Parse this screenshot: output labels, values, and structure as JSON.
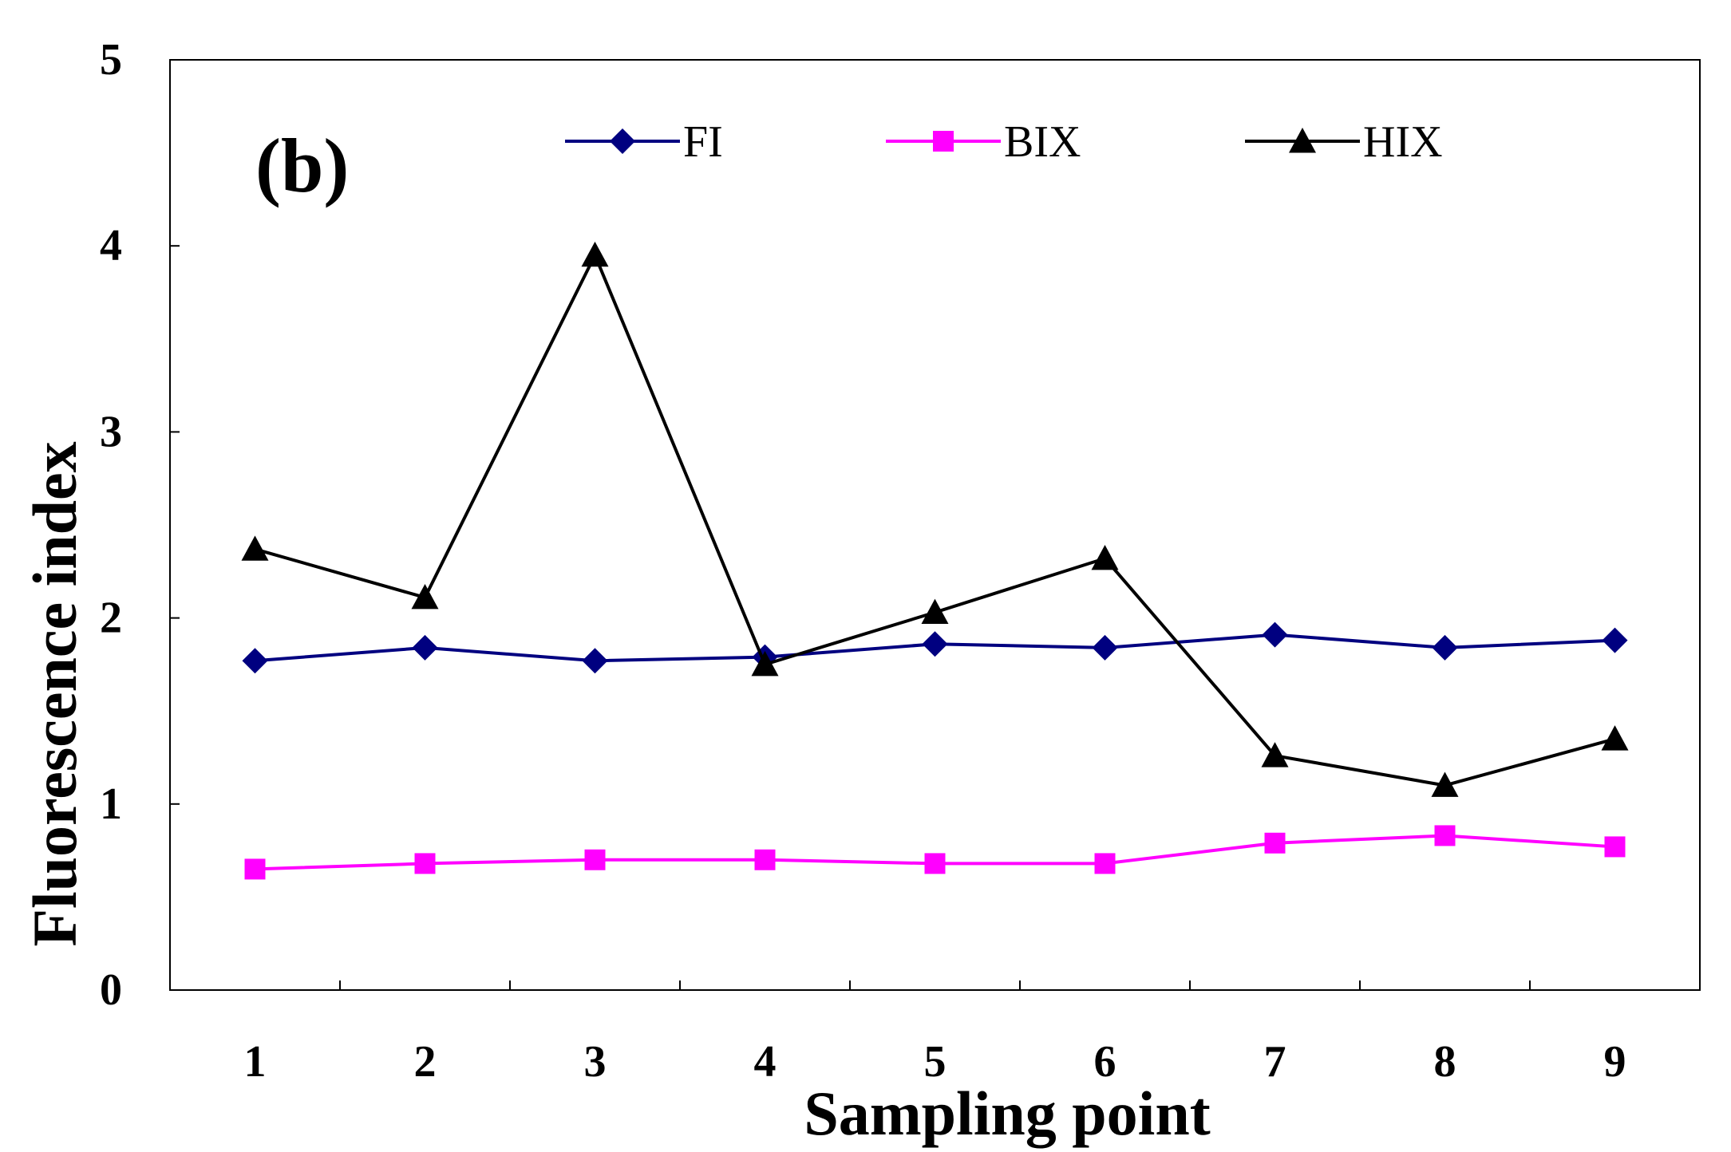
{
  "chart_data": {
    "type": "line",
    "panel_label": "(b)",
    "xlabel": "Sampling point",
    "ylabel": "Fluorescence index",
    "categories": [
      "1",
      "2",
      "3",
      "4",
      "5",
      "6",
      "7",
      "8",
      "9"
    ],
    "ylim": [
      0,
      5
    ],
    "yticks": [
      "0",
      "1",
      "2",
      "3",
      "4",
      "5"
    ],
    "grid": false,
    "legend_position": "top",
    "series": [
      {
        "name": "FI",
        "color": "#000080",
        "marker": "diamond",
        "values": [
          1.77,
          1.84,
          1.77,
          1.79,
          1.86,
          1.84,
          1.91,
          1.84,
          1.88
        ]
      },
      {
        "name": "BIX",
        "color": "#ff00ff",
        "marker": "square",
        "values": [
          0.65,
          0.68,
          0.7,
          0.7,
          0.68,
          0.68,
          0.79,
          0.83,
          0.77
        ]
      },
      {
        "name": "HIX",
        "color": "#000000",
        "marker": "triangle",
        "values": [
          2.37,
          2.11,
          3.95,
          1.75,
          2.03,
          2.32,
          1.26,
          1.1,
          1.35
        ]
      }
    ]
  }
}
